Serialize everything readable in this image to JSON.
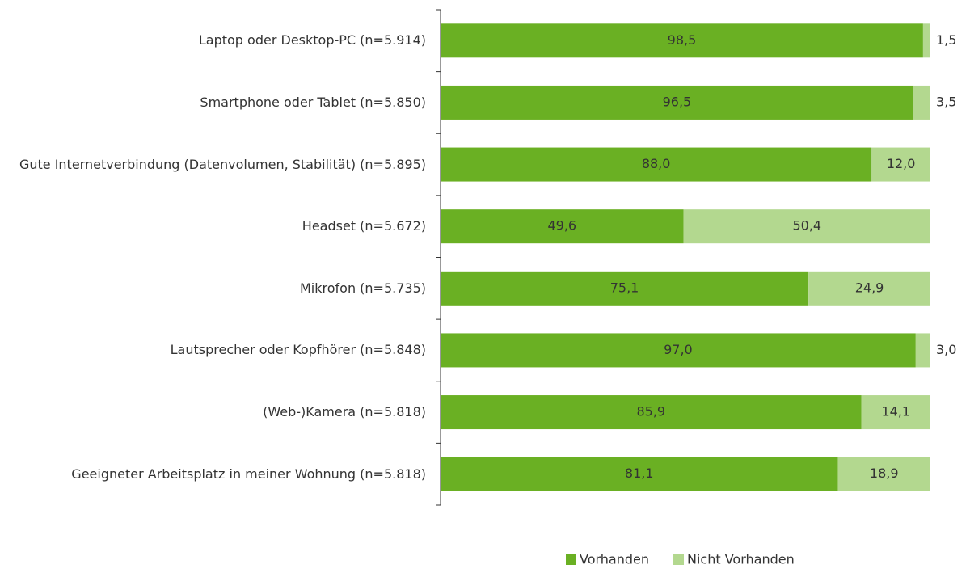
{
  "chart_data": {
    "type": "bar",
    "orientation": "horizontal",
    "stacked": true,
    "categories": [
      "Laptop oder Desktop-PC (n=5.914)",
      "Smartphone oder Tablet (n=5.850)",
      "Gute Internetverbindung (Datenvolumen, Stabilität) (n=5.895)",
      "Headset (n=5.672)",
      "Mikrofon (n=5.735)",
      "Lautsprecher oder Kopfhörer (n=5.848)",
      "(Web-)Kamera  (n=5.818)",
      "Geeigneter Arbeitsplatz in meiner Wohnung (n=5.818)"
    ],
    "series": [
      {
        "name": "Vorhanden",
        "color": "#6ab023",
        "values": [
          98.5,
          96.5,
          88.0,
          49.6,
          75.1,
          97.0,
          85.9,
          81.1
        ],
        "value_labels": [
          "98,5",
          "96,5",
          "88,0",
          "49,6",
          "75,1",
          "97,0",
          "85,9",
          "81,1"
        ]
      },
      {
        "name": "Nicht Vorhanden",
        "color": "#b3d88f",
        "values": [
          1.5,
          3.5,
          12.0,
          50.4,
          24.9,
          3.0,
          14.1,
          18.9
        ],
        "value_labels": [
          "1,5",
          "3,5",
          "12,0",
          "50,4",
          "24,9",
          "3,0",
          "14,1",
          "18,9"
        ]
      }
    ],
    "xlim": [
      0,
      100
    ],
    "legend": "bottom"
  }
}
